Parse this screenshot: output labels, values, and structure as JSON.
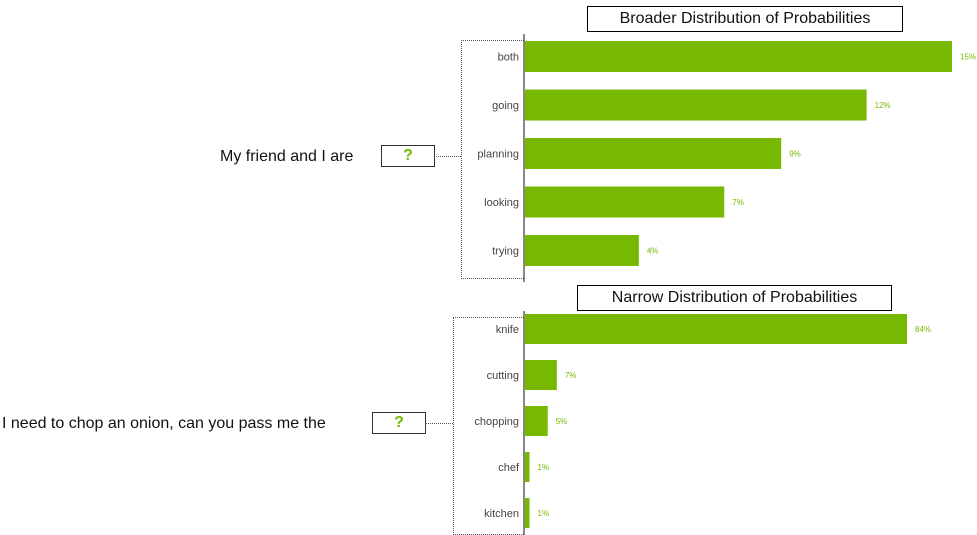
{
  "chart_data": [
    {
      "type": "bar",
      "orientation": "horizontal",
      "title": "Broader Distribution of Probabilities",
      "prompt": "My friend and I are",
      "placeholder": "?",
      "categories": [
        "both",
        "going",
        "planning",
        "looking",
        "trying"
      ],
      "values": [
        15,
        12,
        9,
        7,
        4
      ],
      "value_labels": [
        "15%",
        "12%",
        "9%",
        "7%",
        "4%"
      ],
      "unit": "%",
      "xlim": [
        0,
        15
      ],
      "bar_color": "#76b900"
    },
    {
      "type": "bar",
      "orientation": "horizontal",
      "title": "Narrow Distribution of Probabilities",
      "prompt": "I need to chop an onion, can you pass me the",
      "placeholder": "?",
      "categories": [
        "knife",
        "cutting",
        "chopping",
        "chef",
        "kitchen"
      ],
      "values": [
        84,
        7,
        5,
        1,
        1
      ],
      "value_labels": [
        "84%",
        "7%",
        "5%",
        "1%",
        "1%"
      ],
      "unit": "%",
      "xlim": [
        0,
        84
      ],
      "bar_color": "#76b900"
    }
  ]
}
